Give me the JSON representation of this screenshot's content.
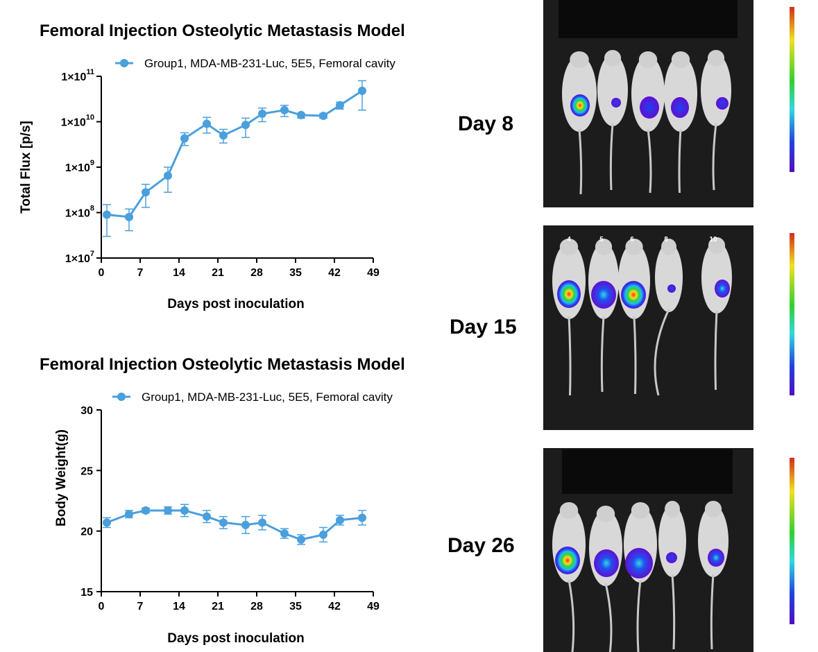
{
  "chart_data": [
    {
      "type": "line",
      "title": "Femoral Injection Osteolytic Metastasis Model",
      "legend": "Group1, MDA-MB-231-Luc, 5E5, Femoral cavity",
      "xlabel": "Days post inoculation",
      "ylabel": "Total Flux [p/s]",
      "yscale": "log",
      "xlim": [
        0,
        49
      ],
      "ylim": [
        10000000,
        100000000000
      ],
      "xticks": [
        "0",
        "7",
        "14",
        "21",
        "28",
        "35",
        "42",
        "49"
      ],
      "yticks": [
        {
          "mant": "1×10",
          "exp": "7"
        },
        {
          "mant": "1×10",
          "exp": "8"
        },
        {
          "mant": "1×10",
          "exp": "9"
        },
        {
          "mant": "1×10",
          "exp": "10"
        },
        {
          "mant": "1×10",
          "exp": "11"
        }
      ],
      "series": [
        {
          "name": "Group1, MDA-MB-231-Luc, 5E5, Femoral cavity",
          "color": "#4a9fdc",
          "x": [
            1,
            5,
            8,
            12,
            15,
            19,
            22,
            26,
            29,
            33,
            36,
            40,
            43,
            47
          ],
          "y": [
            90000000,
            80000000,
            280000000,
            650000000,
            4300000000,
            9000000000,
            5000000000,
            8500000000,
            15000000000,
            18000000000,
            14000000000,
            13500000000,
            23000000000,
            48000000000
          ],
          "err_low": [
            30000000,
            40000000,
            130000000,
            280000000,
            3000000000,
            5600000000,
            3400000000,
            4500000000,
            10000000000,
            13000000000,
            12000000000,
            12000000000,
            19000000000,
            18000000000
          ],
          "err_high": [
            150000000,
            120000000,
            420000000,
            1000000000,
            5700000000,
            12500000000,
            6800000000,
            12000000000,
            20000000000,
            23000000000,
            15000000000,
            15000000000,
            27000000000,
            80000000000
          ]
        }
      ]
    },
    {
      "type": "line",
      "title": "Femoral Injection Osteolytic Metastasis Model",
      "legend": "Group1, MDA-MB-231-Luc, 5E5, Femoral cavity",
      "xlabel": "Days post inoculation",
      "ylabel": "Body Weight(g)",
      "xlim": [
        0,
        49
      ],
      "ylim": [
        15,
        30
      ],
      "xticks": [
        "0",
        "7",
        "14",
        "21",
        "28",
        "35",
        "42",
        "49"
      ],
      "yticks": [
        "15",
        "20",
        "25",
        "30"
      ],
      "series": [
        {
          "name": "Group1, MDA-MB-231-Luc, 5E5, Femoral cavity",
          "color": "#4a9fdc",
          "x": [
            1,
            5,
            8,
            12,
            15,
            19,
            22,
            26,
            29,
            33,
            36,
            40,
            43,
            47
          ],
          "y": [
            20.7,
            21.4,
            21.7,
            21.7,
            21.7,
            21.2,
            20.7,
            20.5,
            20.7,
            19.8,
            19.3,
            19.7,
            20.9,
            21.1
          ],
          "err": [
            0.4,
            0.3,
            0.2,
            0.3,
            0.5,
            0.5,
            0.5,
            0.7,
            0.6,
            0.4,
            0.4,
            0.6,
            0.4,
            0.6
          ]
        }
      ]
    }
  ],
  "imaging": {
    "panels": [
      {
        "label": "Day 8",
        "mouse_numbers": []
      },
      {
        "label": "Day 15",
        "mouse_numbers": [
          "4",
          "5",
          "6",
          "8",
          "10"
        ]
      },
      {
        "label": "Day 26",
        "mouse_numbers": []
      }
    ],
    "scale_colors": [
      "#d22e1a",
      "#f0e020",
      "#30d030",
      "#30d8e0",
      "#2040e0",
      "#5010c0"
    ]
  }
}
